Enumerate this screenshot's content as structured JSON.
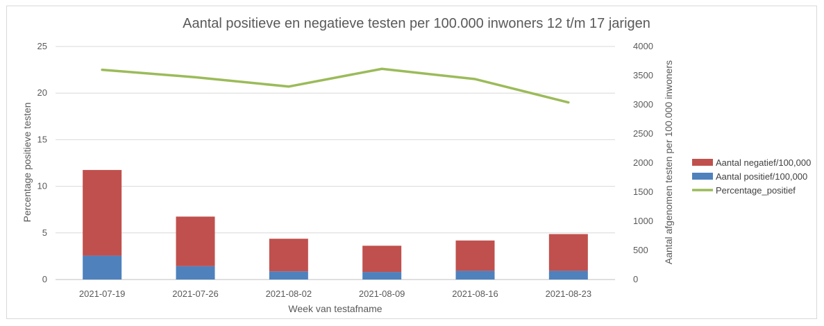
{
  "chart_data": {
    "type": "bar",
    "title": "Aantal positieve en negatieve testen per 100.000 inwoners 12 t/m 17 jarigen",
    "xlabel": "Week van testafname",
    "ylabel_left": "Percentage positieve testen",
    "ylabel_right": "Aantal afgenomen testen per 100.000 inwoners",
    "categories": [
      "2021-07-19",
      "2021-07-26",
      "2021-08-02",
      "2021-08-09",
      "2021-08-16",
      "2021-08-23"
    ],
    "ylim_left": [
      0,
      25
    ],
    "ylim_right": [
      0,
      4000
    ],
    "yticks_left": [
      "0",
      "5",
      "10",
      "15",
      "20",
      "25"
    ],
    "yticks_right": [
      "0",
      "500",
      "1000",
      "1500",
      "2000",
      "2500",
      "3000",
      "3500",
      "4000"
    ],
    "grid": true,
    "legend_position": "right",
    "series": [
      {
        "name": "Aantal positief/100,000",
        "kind": "stacked-bar",
        "axis": "right",
        "color": "#4f81bd",
        "values": [
          410,
          230,
          140,
          130,
          150,
          150
        ]
      },
      {
        "name": "Aantal negatief/100,000",
        "kind": "stacked-bar",
        "axis": "right",
        "color": "#c0504d",
        "values": [
          1470,
          850,
          560,
          450,
          520,
          630
        ]
      },
      {
        "name": "Percentage_positief",
        "kind": "line",
        "axis": "left",
        "color": "#9bbb59",
        "values": [
          22.5,
          21.7,
          20.7,
          22.6,
          21.5,
          19.0
        ]
      }
    ]
  }
}
